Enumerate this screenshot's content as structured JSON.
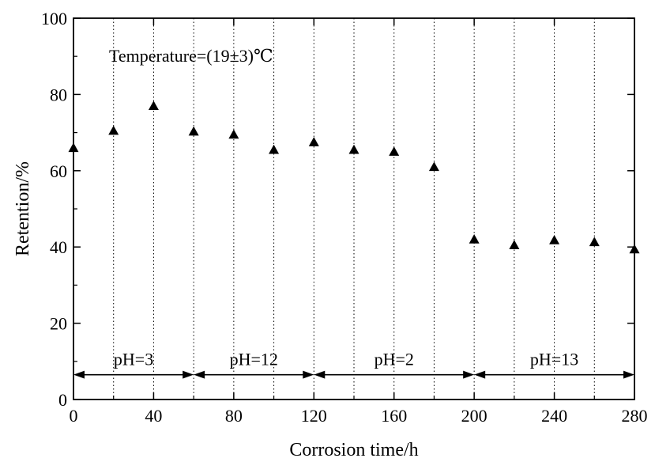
{
  "chart_data": {
    "type": "scatter",
    "xlabel": "Corrosion time/h",
    "ylabel": "Retention/%",
    "xlim": [
      0,
      280
    ],
    "ylim": [
      0,
      100
    ],
    "xticks": [
      "0",
      "40",
      "80",
      "120",
      "160",
      "200",
      "240",
      "280"
    ],
    "yticks": [
      "0",
      "20",
      "40",
      "60",
      "80",
      "100"
    ],
    "x_minor_step": 20,
    "y_minor_step": 10,
    "marker": "triangle-up",
    "grid": "vertical dotted lines every 20 h",
    "annotation": "Temperature=(19±3)℃",
    "series": [
      {
        "x": [
          0,
          20,
          40,
          60,
          80,
          100,
          120,
          140,
          160,
          180,
          200,
          220,
          240,
          260,
          280
        ],
        "y": [
          66,
          70.5,
          77,
          70.3,
          69.5,
          65.5,
          67.5,
          65.5,
          65,
          61,
          42,
          40.5,
          41.8,
          41.3,
          39.4
        ]
      }
    ],
    "intervals": [
      {
        "label": "pH=3",
        "from": 0,
        "to": 60,
        "y": 6.5
      },
      {
        "label": "pH=12",
        "from": 60,
        "to": 120,
        "y": 6.5
      },
      {
        "label": "pH=2",
        "from": 120,
        "to": 200,
        "y": 6.5
      },
      {
        "label": "pH=13",
        "from": 200,
        "to": 280,
        "y": 6.5
      }
    ]
  }
}
